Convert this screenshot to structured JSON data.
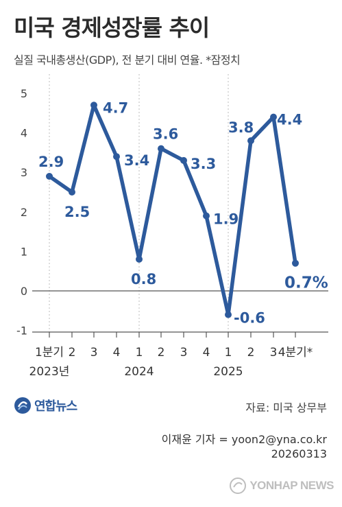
{
  "title": "미국 경제성장률 추이",
  "subtitle": "실질 국내총생산(GDP), 전 분기 대비 연율. *잠정치",
  "chart_data": {
    "type": "line",
    "title": "미국 경제성장률 추이",
    "ylim": [
      -1,
      5
    ],
    "yticks": [
      "5",
      "4",
      "3",
      "2",
      "1",
      "0",
      "-1"
    ],
    "categories": [
      "1분기",
      "2",
      "3",
      "4",
      "1",
      "2",
      "3",
      "4",
      "1",
      "2",
      "3",
      "4분기*"
    ],
    "year_labels": [
      {
        "label": "2023년",
        "index": 0
      },
      {
        "label": "2024",
        "index": 4
      },
      {
        "label": "2025",
        "index": 8
      }
    ],
    "series": [
      {
        "values": [
          2.9,
          2.5,
          4.7,
          3.4,
          0.8,
          3.6,
          3.3,
          1.9,
          -0.6,
          3.8,
          4.4,
          0.7
        ],
        "labels": [
          "2.9",
          "2.5",
          "4.7",
          "3.4",
          "0.8",
          "3.6",
          "3.3",
          "1.9",
          "-0.6",
          "3.8",
          "4.4",
          "0.7%"
        ]
      }
    ],
    "grid": false,
    "colors": {
      "line": "#2d5a9c",
      "label": "#2d5a9c",
      "axis": "#555555",
      "guide": "#bbbbbb"
    }
  },
  "brand": {
    "name": "연합뉴스"
  },
  "source": "자료: 미국 상무부",
  "credit": {
    "author": "이재윤 기자 = yoon2@yna.co.kr",
    "date": "20260313"
  },
  "watermark": "YONHAP NEWS"
}
